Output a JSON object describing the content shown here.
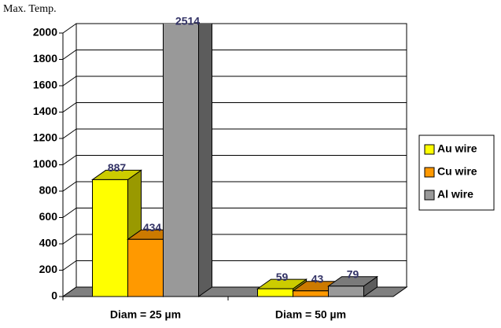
{
  "chart_data": {
    "type": "bar3d",
    "title": "Max. Temp.",
    "categories": [
      "Diam = 25 µm",
      "Diam = 50 µm"
    ],
    "series": [
      {
        "name": "Au wire",
        "color": "#ffff00",
        "values": [
          887,
          59
        ]
      },
      {
        "name": "Cu wire",
        "color": "#ff9900",
        "values": [
          434,
          43
        ]
      },
      {
        "name": "Al wire",
        "color": "#999999",
        "values": [
          2514,
          79
        ]
      }
    ],
    "ylim": [
      0,
      2000
    ],
    "yticks": [
      0,
      200,
      400,
      600,
      800,
      1000,
      1200,
      1400,
      1600,
      1800,
      2000
    ],
    "grid": true,
    "legend": "right"
  }
}
